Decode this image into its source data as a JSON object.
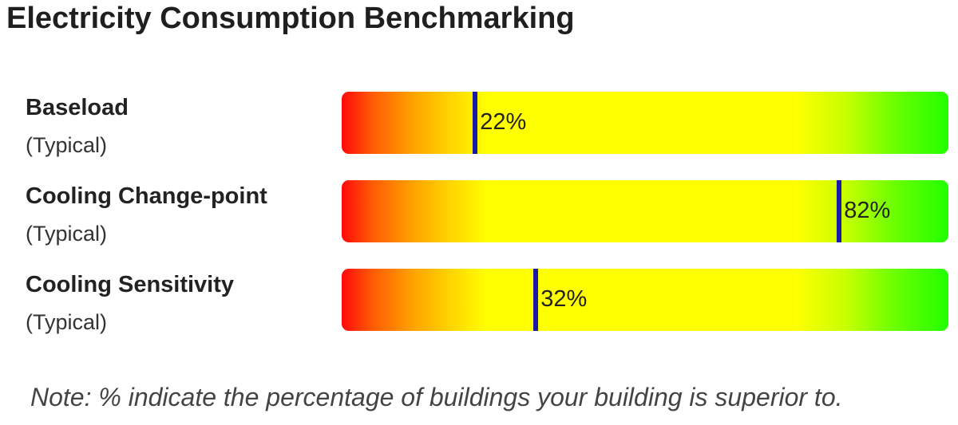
{
  "title": "Electricity Consumption Benchmarking",
  "note": "Note: % indicate the percentage of buildings your building is superior to.",
  "colors": {
    "bar_low": "#ff0a0a",
    "bar_mid": "#ffff00",
    "bar_high": "#22ff00",
    "marker": "#1a1aa6"
  },
  "chart_data": {
    "type": "bar",
    "categories": [
      "Baseload",
      "Cooling Change-point",
      "Cooling Sensitivity"
    ],
    "sublabels": [
      "(Typical)",
      "(Typical)",
      "(Typical)"
    ],
    "values": [
      22,
      82,
      32
    ],
    "value_labels": [
      "22%",
      "82%",
      "32%"
    ],
    "xlim": [
      0,
      100
    ],
    "title": "Electricity Consumption Benchmarking",
    "xlabel": "",
    "ylabel": "",
    "grid": false,
    "legend": "none"
  }
}
